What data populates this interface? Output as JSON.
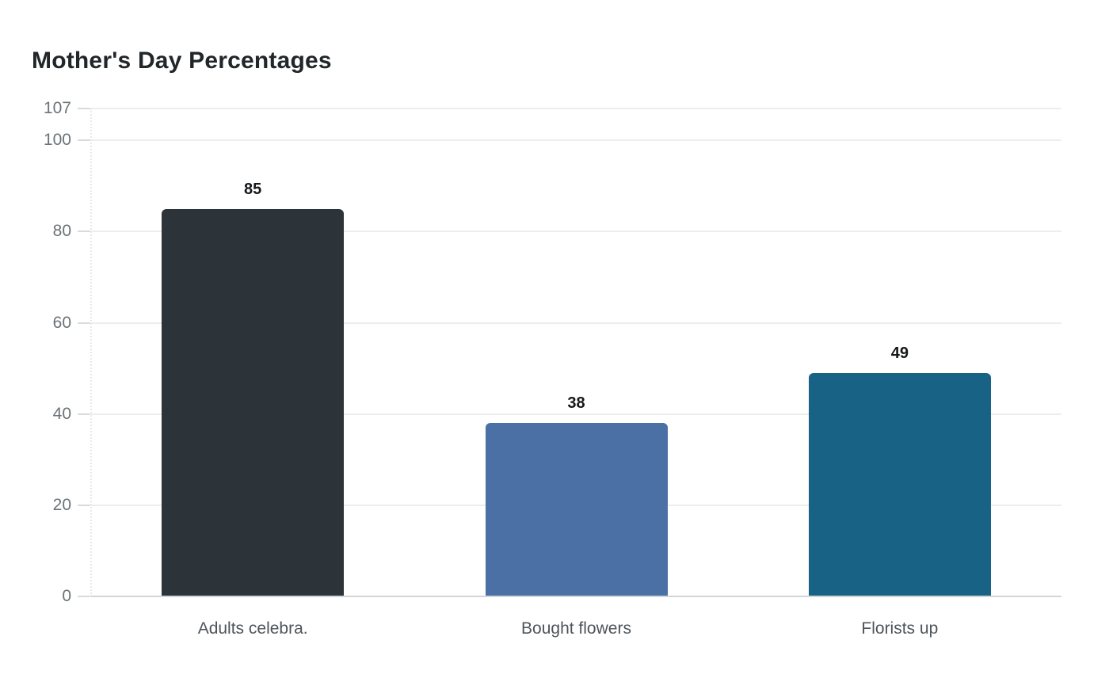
{
  "chart_data": {
    "type": "bar",
    "title": "Mother's Day Percentages",
    "categories": [
      "Adults celebra.",
      "Bought flowers",
      "Florists up"
    ],
    "values": [
      85,
      38,
      49
    ],
    "bar_colors": [
      "#2c343a",
      "#4b70a6",
      "#186285"
    ],
    "yticks": [
      0,
      20,
      40,
      60,
      80,
      100,
      107
    ],
    "ylim": [
      0,
      107
    ],
    "xlabel": "",
    "ylabel": "",
    "grid": true,
    "legend": false,
    "value_labels_shown": true
  },
  "appearance": {
    "background": "#ffffff",
    "title_color": "#212629",
    "tick_label_color": "#6c7378",
    "category_label_color": "#4d545a",
    "value_label_color": "#141719",
    "gridline_color": "#ededed",
    "axis_line_color": "#d2d6d8",
    "tick_mark_color": "#d8dbdd",
    "dotted_axis_color": "#e7e9ea"
  }
}
